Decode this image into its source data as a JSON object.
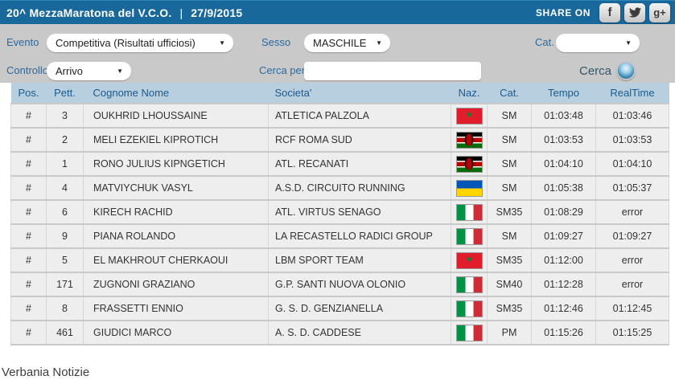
{
  "header": {
    "title": "20^ MezzaMaratona del V.C.O.",
    "separator": "|",
    "date": "27/9/2015",
    "share_label": "SHARE ON",
    "social": {
      "facebook_glyph": "f",
      "googleplus_glyph": "g+"
    }
  },
  "filters": {
    "evento": {
      "label": "Evento",
      "value": "Competitiva (Risultati ufficiosi)"
    },
    "sesso": {
      "label": "Sesso",
      "value": "MASCHILE"
    },
    "cat": {
      "label": "Cat.",
      "value": ""
    },
    "controllo": {
      "label": "Controllo",
      "value": "Arrivo"
    },
    "cerca_per": {
      "label": "Cerca per",
      "value": "",
      "placeholder": ""
    },
    "cerca_button": {
      "label": "Cerca"
    }
  },
  "table": {
    "columns": [
      "Pos.",
      "Pett.",
      "Cognome Nome",
      "Societa'",
      "Naz.",
      "Cat.",
      "Tempo",
      "RealTime"
    ],
    "rows": [
      {
        "pos": "#",
        "pett": "3",
        "nome": "OUKHRID LHOUSSAINE",
        "societa": "ATLETICA PALZOLA",
        "naz": "morocco",
        "cat": "SM",
        "tempo": "01:03:48",
        "realtime": "01:03:46"
      },
      {
        "pos": "#",
        "pett": "2",
        "nome": "MELI EZEKIEL KIPROTICH",
        "societa": "RCF ROMA SUD",
        "naz": "kenya",
        "cat": "SM",
        "tempo": "01:03:53",
        "realtime": "01:03:53"
      },
      {
        "pos": "#",
        "pett": "1",
        "nome": "RONO JULIUS KIPNGETICH",
        "societa": "ATL. RECANATI",
        "naz": "kenya",
        "cat": "SM",
        "tempo": "01:04:10",
        "realtime": "01:04:10"
      },
      {
        "pos": "#",
        "pett": "4",
        "nome": "MATVIYCHUK VASYL",
        "societa": "A.S.D. CIRCUITO RUNNING",
        "naz": "ukraine",
        "cat": "SM",
        "tempo": "01:05:38",
        "realtime": "01:05:37"
      },
      {
        "pos": "#",
        "pett": "6",
        "nome": "KIRECH RACHID",
        "societa": "ATL. VIRTUS SENAGO",
        "naz": "italy",
        "cat": "SM35",
        "tempo": "01:08:29",
        "realtime": "error"
      },
      {
        "pos": "#",
        "pett": "9",
        "nome": "PIANA ROLANDO",
        "societa": "LA RECASTELLO RADICI GROUP",
        "naz": "italy",
        "cat": "SM",
        "tempo": "01:09:27",
        "realtime": "01:09:27"
      },
      {
        "pos": "#",
        "pett": "5",
        "nome": "EL MAKHROUT CHERKAOUI",
        "societa": "LBM SPORT TEAM",
        "naz": "morocco",
        "cat": "SM35",
        "tempo": "01:12:00",
        "realtime": "error"
      },
      {
        "pos": "#",
        "pett": "171",
        "nome": "ZUGNONI GRAZIANO",
        "societa": "G.P. SANTI NUOVA OLONIO",
        "naz": "italy",
        "cat": "SM40",
        "tempo": "01:12:28",
        "realtime": "error"
      },
      {
        "pos": "#",
        "pett": "8",
        "nome": "FRASSETTI ENNIO",
        "societa": "G. S. D. GENZIANELLA",
        "naz": "italy",
        "cat": "SM35",
        "tempo": "01:12:46",
        "realtime": "01:12:45"
      },
      {
        "pos": "#",
        "pett": "461",
        "nome": "GIUDICI MARCO",
        "societa": "A. S. D. CADDESE",
        "naz": "italy",
        "cat": "PM",
        "tempo": "01:15:26",
        "realtime": "01:15:25"
      }
    ]
  },
  "footer": {
    "text": "Verbania Notizie"
  },
  "colors": {
    "topbar_bg": "#19689b",
    "filter_bg": "#c9c9c9",
    "table_header_bg": "#b8cfe0",
    "table_header_text": "#1a5a8e",
    "label_blue": "#2a6a9e",
    "row_bg": "#eeeeee"
  }
}
